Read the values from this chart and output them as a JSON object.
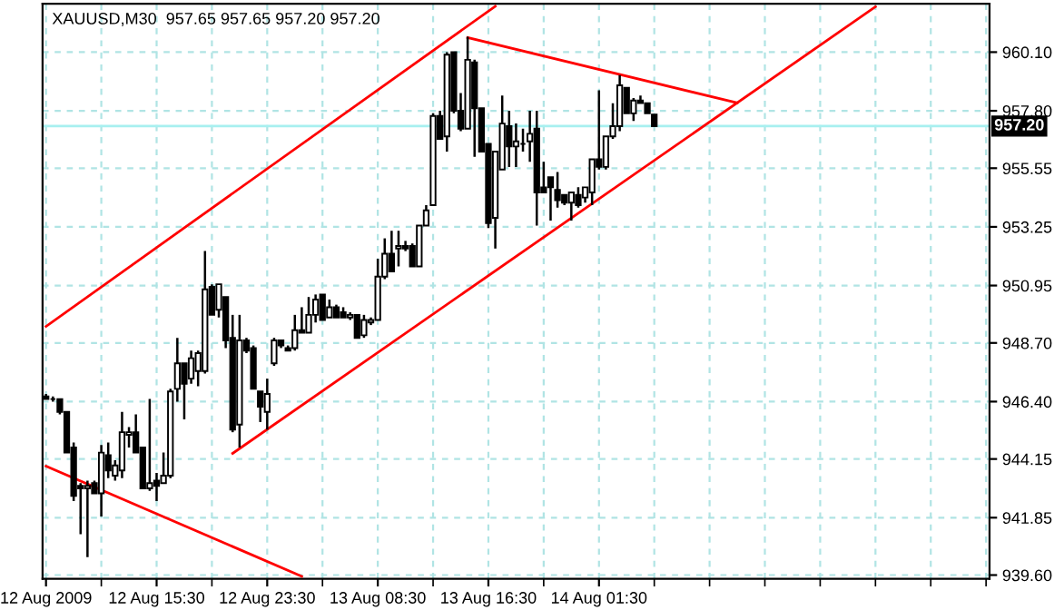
{
  "chart_data": {
    "type": "candlestick",
    "title": "XAUUSD,M30  957.65 957.65 957.20 957.20",
    "categories": [
      "12 Aug 2009",
      null,
      null,
      null,
      null,
      null,
      null,
      null,
      null,
      null,
      null,
      null,
      null,
      null,
      null,
      null,
      "12 Aug 15:30",
      null,
      null,
      null,
      null,
      null,
      null,
      null,
      null,
      null,
      null,
      null,
      null,
      null,
      null,
      null,
      "12 Aug 23:30",
      null,
      null,
      null,
      null,
      null,
      null,
      null,
      null,
      null,
      null,
      null,
      null,
      null,
      null,
      null,
      "13 Aug 08:30",
      null,
      null,
      null,
      null,
      null,
      null,
      null,
      null,
      null,
      null,
      null,
      null,
      null,
      null,
      null,
      "13 Aug 16:30",
      null,
      null,
      null,
      null,
      null,
      null,
      null,
      null,
      null,
      null,
      null,
      null,
      null,
      null,
      null,
      "14 Aug 01:30",
      null,
      null,
      null,
      null,
      null,
      null,
      null,
      null,
      null,
      null,
      null,
      null,
      null,
      null,
      null,
      null,
      null,
      null,
      null,
      null,
      null,
      null,
      null,
      null,
      null,
      null,
      null,
      null,
      null,
      null,
      null,
      null,
      null,
      null,
      null,
      null,
      null,
      null,
      null,
      null,
      null,
      null,
      null,
      null,
      null,
      null,
      null,
      null,
      null,
      null,
      null,
      null,
      null,
      null,
      null,
      null
    ],
    "ohlc": [
      [
        946.6,
        946.7,
        946.5,
        946.5
      ],
      [
        946.5,
        946.6,
        946.4,
        946.5
      ],
      [
        946.5,
        946.5,
        945.9,
        946.0
      ],
      [
        946.0,
        946.0,
        944.4,
        944.4
      ],
      [
        944.6,
        944.8,
        942.5,
        942.7
      ],
      [
        943.1,
        943.2,
        941.2,
        943.0
      ],
      [
        943.0,
        943.3,
        940.3,
        943.1
      ],
      [
        943.2,
        943.3,
        942.8,
        942.8
      ],
      [
        942.8,
        944.7,
        941.9,
        944.4
      ],
      [
        944.3,
        944.8,
        943.4,
        943.7
      ],
      [
        943.5,
        944.1,
        943.3,
        943.9
      ],
      [
        943.7,
        946.0,
        943.4,
        945.2
      ],
      [
        945.1,
        945.4,
        944.6,
        945.2
      ],
      [
        945.2,
        945.9,
        944.4,
        944.4
      ],
      [
        944.6,
        944.6,
        943.0,
        943.0
      ],
      [
        943.0,
        946.5,
        942.9,
        943.2
      ],
      [
        943.3,
        943.6,
        942.5,
        943.1
      ],
      [
        943.2,
        944.4,
        943.2,
        943.5
      ],
      [
        943.5,
        946.9,
        943.4,
        946.8
      ],
      [
        946.9,
        948.9,
        946.4,
        947.9
      ],
      [
        947.9,
        947.9,
        945.7,
        947.1
      ],
      [
        947.3,
        948.4,
        947.1,
        948.1
      ],
      [
        947.6,
        948.4,
        947.0,
        948.3
      ],
      [
        947.6,
        952.3,
        947.5,
        950.8
      ],
      [
        950.9,
        951.0,
        949.8,
        949.8
      ],
      [
        950.0,
        951.0,
        949.7,
        951.0
      ],
      [
        950.5,
        950.5,
        948.5,
        948.8
      ],
      [
        948.9,
        949.8,
        945.2,
        945.3
      ],
      [
        945.5,
        949.8,
        944.6,
        948.8
      ],
      [
        948.8,
        948.9,
        948.3,
        948.4
      ],
      [
        948.5,
        948.6,
        946.9,
        946.9
      ],
      [
        946.8,
        946.8,
        945.6,
        946.2
      ],
      [
        946.0,
        947.3,
        945.3,
        946.7
      ],
      [
        947.9,
        948.9,
        947.8,
        948.8
      ],
      [
        948.8,
        948.8,
        948.5,
        948.6
      ],
      [
        948.5,
        948.6,
        948.4,
        948.4
      ],
      [
        948.5,
        949.8,
        948.4,
        949.2
      ],
      [
        949.2,
        950.1,
        949.1,
        949.1
      ],
      [
        949.1,
        950.5,
        949.1,
        949.8
      ],
      [
        949.8,
        950.6,
        949.5,
        950.4
      ],
      [
        950.6,
        950.6,
        949.6,
        949.6
      ],
      [
        949.7,
        950.4,
        949.7,
        950.1
      ],
      [
        950.1,
        950.2,
        949.7,
        949.7
      ],
      [
        949.9,
        950.1,
        949.7,
        949.7
      ],
      [
        949.7,
        949.9,
        949.6,
        949.8
      ],
      [
        949.8,
        949.8,
        948.9,
        948.9
      ],
      [
        949.0,
        949.8,
        948.9,
        949.6
      ],
      [
        949.5,
        949.7,
        949.4,
        949.6
      ],
      [
        949.6,
        952.0,
        949.6,
        951.3
      ],
      [
        951.3,
        952.8,
        951.2,
        952.2
      ],
      [
        952.2,
        953.1,
        951.5,
        951.5
      ],
      [
        952.4,
        953.1,
        951.7,
        952.5
      ],
      [
        952.5,
        952.7,
        952.3,
        952.4
      ],
      [
        952.5,
        952.6,
        951.7,
        951.7
      ],
      [
        951.7,
        953.3,
        951.7,
        953.3
      ],
      [
        953.3,
        954.1,
        953.3,
        953.9
      ],
      [
        954.1,
        957.7,
        954.1,
        957.6
      ],
      [
        957.6,
        957.8,
        956.7,
        956.7
      ],
      [
        956.8,
        960.1,
        956.2,
        960.0
      ],
      [
        960.1,
        960.1,
        957.7,
        957.8
      ],
      [
        957.8,
        958.5,
        957.0,
        957.1
      ],
      [
        957.1,
        960.7,
        957.1,
        959.8
      ],
      [
        959.7,
        959.8,
        956.0,
        957.9
      ],
      [
        957.9,
        957.9,
        956.2,
        956.2
      ],
      [
        956.5,
        956.5,
        953.2,
        953.4
      ],
      [
        953.6,
        956.2,
        952.4,
        956.2
      ],
      [
        955.5,
        958.4,
        955.5,
        957.3
      ],
      [
        957.2,
        957.8,
        955.6,
        956.4
      ],
      [
        956.4,
        957.3,
        955.6,
        956.6
      ],
      [
        956.5,
        957.1,
        956.2,
        956.5
      ],
      [
        956.6,
        957.8,
        955.8,
        956.9
      ],
      [
        957.1,
        957.8,
        953.3,
        954.6
      ],
      [
        954.8,
        955.8,
        954.6,
        954.6
      ],
      [
        955.2,
        955.2,
        953.5,
        954.8
      ],
      [
        954.7,
        955.4,
        954.0,
        954.3
      ],
      [
        954.5,
        954.5,
        954.1,
        954.2
      ],
      [
        954.2,
        954.6,
        953.5,
        954.6
      ],
      [
        954.5,
        954.8,
        954.0,
        954.1
      ],
      [
        954.4,
        954.8,
        954.2,
        954.8
      ],
      [
        954.6,
        955.9,
        954.1,
        955.9
      ],
      [
        955.9,
        958.6,
        955.5,
        955.6
      ],
      [
        955.6,
        956.8,
        955.5,
        956.8
      ],
      [
        956.8,
        958.1,
        956.7,
        957.2
      ],
      [
        957.2,
        959.2,
        957.0,
        958.8
      ],
      [
        958.7,
        958.7,
        957.7,
        957.7
      ],
      [
        957.7,
        958.3,
        957.4,
        958.2
      ],
      [
        958.2,
        958.4,
        958.1,
        958.1
      ],
      [
        958.1,
        958.1,
        957.7,
        957.7
      ],
      [
        957.65,
        957.65,
        957.2,
        957.2
      ],
      null,
      null,
      null,
      null,
      null,
      null,
      null,
      null,
      null,
      null,
      null,
      null,
      null,
      null,
      null,
      null,
      null,
      null,
      null,
      null,
      null,
      null,
      null,
      null,
      null,
      null,
      null,
      null,
      null,
      null,
      null,
      null,
      null,
      null,
      null,
      null,
      null,
      null,
      null,
      null,
      null,
      null,
      null,
      null,
      null,
      null,
      null,
      null
    ],
    "series": [
      {
        "type": "line",
        "color": "#ff0000",
        "values": [
          949.35,
          null,
          null,
          null,
          null,
          null,
          null,
          null,
          null,
          null,
          null,
          null,
          null,
          null,
          null,
          null,
          null,
          null,
          null,
          null,
          null,
          null,
          null,
          null,
          null,
          null,
          null,
          null,
          null,
          null,
          null,
          null,
          null,
          null,
          null,
          null,
          null,
          null,
          null,
          null,
          null,
          null,
          null,
          null,
          null,
          null,
          null,
          null,
          null,
          null,
          null,
          null,
          null,
          null,
          null,
          null,
          null,
          null,
          null,
          null,
          null,
          null,
          null,
          null,
          null,
          961.9,
          null,
          null,
          null,
          null,
          null,
          null,
          null,
          null,
          null,
          null,
          null,
          null,
          null,
          null,
          null,
          null,
          null,
          null,
          null,
          null,
          null,
          null,
          null,
          null,
          null,
          null,
          null,
          null,
          null,
          null,
          null,
          null,
          null,
          null,
          null,
          null,
          null,
          null,
          null,
          null,
          null,
          null,
          null,
          null,
          null,
          null,
          null,
          null,
          null,
          null,
          null,
          null,
          null,
          null,
          null,
          null,
          null,
          null,
          null,
          null,
          null,
          null,
          null,
          null,
          null,
          null,
          null,
          null,
          null,
          null,
          null
        ]
      },
      {
        "type": "line",
        "color": "#ff0000",
        "values": [
          null,
          null,
          null,
          null,
          null,
          null,
          null,
          null,
          null,
          null,
          null,
          null,
          null,
          null,
          null,
          null,
          null,
          null,
          null,
          null,
          null,
          null,
          null,
          null,
          null,
          null,
          null,
          944.37,
          null,
          null,
          null,
          null,
          null,
          null,
          null,
          null,
          null,
          null,
          null,
          null,
          null,
          null,
          null,
          null,
          null,
          null,
          null,
          null,
          null,
          null,
          null,
          null,
          null,
          null,
          null,
          null,
          null,
          null,
          null,
          null,
          null,
          null,
          null,
          null,
          null,
          null,
          null,
          null,
          null,
          null,
          null,
          null,
          null,
          null,
          null,
          null,
          null,
          null,
          null,
          null,
          null,
          null,
          null,
          null,
          null,
          null,
          null,
          null,
          null,
          null,
          null,
          null,
          null,
          null,
          null,
          null,
          null,
          null,
          null,
          null,
          null,
          null,
          null,
          null,
          null,
          null,
          null,
          null,
          null,
          null,
          null,
          null,
          null,
          null,
          null,
          null,
          null,
          null,
          null,
          null,
          961.88,
          null,
          null,
          null,
          null,
          null,
          null,
          null,
          null,
          null,
          null,
          null,
          null,
          null,
          null,
          null,
          null
        ]
      },
      {
        "type": "line",
        "color": "#ff0000",
        "values": [
          null,
          null,
          null,
          null,
          null,
          null,
          null,
          null,
          null,
          null,
          null,
          null,
          null,
          null,
          null,
          null,
          null,
          null,
          null,
          null,
          null,
          null,
          null,
          null,
          null,
          null,
          null,
          null,
          null,
          null,
          null,
          null,
          null,
          null,
          null,
          null,
          null,
          null,
          null,
          null,
          null,
          null,
          null,
          null,
          null,
          null,
          null,
          null,
          null,
          null,
          null,
          null,
          null,
          null,
          null,
          null,
          null,
          null,
          null,
          null,
          null,
          960.67,
          null,
          null,
          null,
          null,
          null,
          null,
          null,
          null,
          null,
          null,
          null,
          null,
          null,
          null,
          null,
          null,
          null,
          null,
          null,
          null,
          null,
          null,
          null,
          null,
          null,
          null,
          null,
          null,
          null,
          null,
          null,
          null,
          null,
          null,
          null,
          null,
          null,
          null,
          958.11,
          null,
          null,
          null,
          null,
          null,
          null,
          null,
          null,
          null,
          null,
          null,
          null,
          null,
          null,
          null,
          null,
          null,
          null,
          null,
          null,
          null,
          null,
          null,
          null,
          null,
          null,
          null,
          null,
          null,
          null,
          null,
          null,
          null,
          null,
          null,
          null
        ]
      },
      {
        "type": "line",
        "color": "#ff0000",
        "values": [
          943.87,
          null,
          null,
          null,
          null,
          null,
          null,
          null,
          null,
          null,
          null,
          null,
          null,
          null,
          null,
          null,
          null,
          null,
          null,
          null,
          null,
          null,
          null,
          null,
          null,
          null,
          null,
          null,
          null,
          null,
          null,
          null,
          null,
          null,
          null,
          null,
          null,
          939.55,
          null,
          null,
          null,
          null,
          null,
          null,
          null,
          null,
          null,
          null,
          null,
          null,
          null,
          null,
          null,
          null,
          null,
          null,
          null,
          null,
          null,
          null,
          null,
          null,
          null,
          null,
          null,
          null,
          null,
          null,
          null,
          null,
          null,
          null,
          null,
          null,
          null,
          null,
          null,
          null,
          null,
          null,
          null,
          null,
          null,
          null,
          null,
          null,
          null,
          null,
          null,
          null,
          null,
          null,
          null,
          null,
          null,
          null,
          null,
          null,
          null,
          null,
          null,
          null,
          null,
          null,
          null,
          null,
          null,
          null,
          null,
          null,
          null,
          null,
          null,
          null,
          null,
          null,
          null,
          null,
          null,
          null,
          null,
          null,
          null,
          null,
          null,
          null,
          null,
          null,
          null,
          null,
          null,
          null,
          null,
          null,
          null,
          null,
          null
        ]
      }
    ],
    "ylim": [
      939.45,
      962.0
    ],
    "yticks": [
      {
        "value": 939.6,
        "label": "939.60"
      },
      941.85,
      944.15,
      {
        "value": 946.4,
        "label": "946.40"
      },
      {
        "value": 948.7,
        "label": "948.70"
      },
      950.95,
      953.25,
      955.55,
      {
        "value": 957.8,
        "label": "957.80"
      },
      {
        "value": 960.1,
        "label": "960.10"
      }
    ],
    "ref_lines": [
      {
        "axis": "y",
        "value": 957.2,
        "label": "957.20",
        "color": "#a8f0f0"
      }
    ],
    "grid": true
  }
}
